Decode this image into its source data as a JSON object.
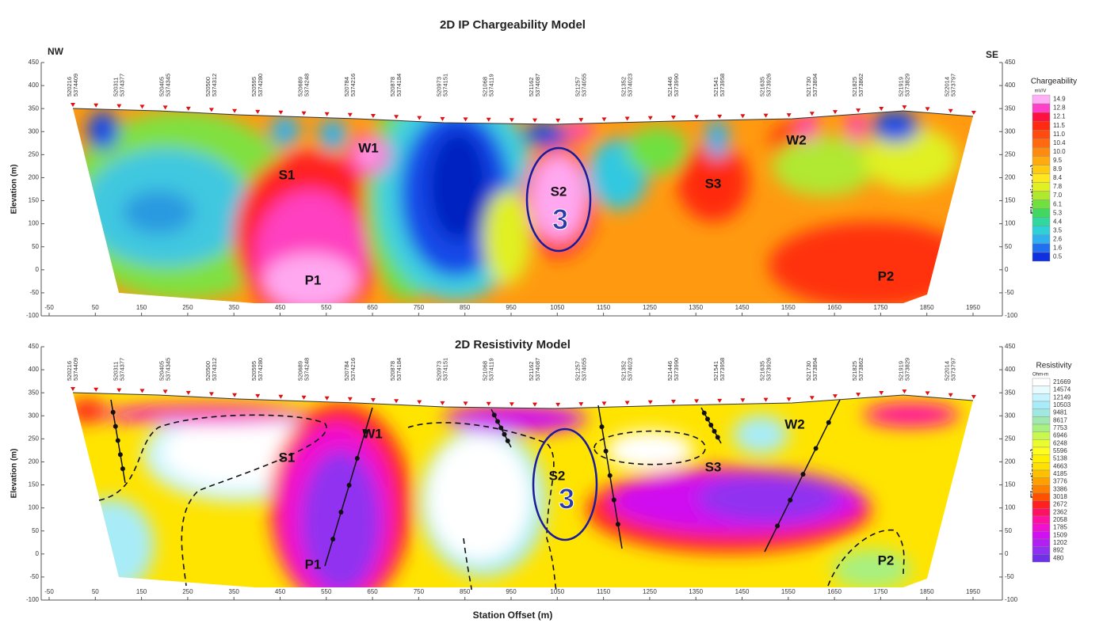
{
  "figure": {
    "x_label": "Station Offset (m)",
    "left_label": "NW",
    "right_label": "SE"
  },
  "chart_data": [
    {
      "type": "contour",
      "title": "2D IP Chargeability Model",
      "y_label": "Elevation (m)",
      "xlim": [
        -80,
        1990
      ],
      "ylim": [
        -100,
        450
      ],
      "xticks": [
        -50,
        50,
        150,
        250,
        350,
        450,
        550,
        650,
        750,
        850,
        950,
        1050,
        1150,
        1250,
        1350,
        1450,
        1550,
        1650,
        1750,
        1850,
        1950
      ],
      "yticks": [
        -100,
        -50,
        0,
        50,
        100,
        150,
        200,
        250,
        300,
        350,
        400,
        450
      ],
      "stations": [
        [
          "520216",
          "5374409"
        ],
        [
          "520311",
          "5374377"
        ],
        [
          "520405",
          "5374345"
        ],
        [
          "520500",
          "5374312"
        ],
        [
          "520595",
          "5374280"
        ],
        [
          "520689",
          "5374248"
        ],
        [
          "520784",
          "5374216"
        ],
        [
          "520878",
          "5374184"
        ],
        [
          "520973",
          "5374151"
        ],
        [
          "521068",
          "5374119"
        ],
        [
          "521162",
          "5374087"
        ],
        [
          "521257",
          "5374055"
        ],
        [
          "521352",
          "5374023"
        ],
        [
          "521446",
          "5373990"
        ],
        [
          "521541",
          "5373958"
        ],
        [
          "521635",
          "5373926"
        ],
        [
          "521730",
          "5373894"
        ],
        [
          "521825",
          "5373862"
        ],
        [
          "521919",
          "5373829"
        ],
        [
          "522014",
          "5373797"
        ]
      ],
      "annotations": [
        "S1",
        "W1",
        "S2",
        "3",
        "S3",
        "W2",
        "P1",
        "P2"
      ],
      "colorbar": {
        "title": "Chargeability",
        "unit": "mV/V",
        "levels": [
          14.9,
          12.8,
          12.1,
          11.5,
          11.0,
          10.4,
          10.0,
          9.5,
          8.9,
          8.4,
          7.8,
          7.0,
          6.1,
          5.3,
          4.4,
          3.5,
          2.6,
          1.6,
          0.5
        ],
        "level_labels": [
          "14.9",
          "12.8",
          "12.1",
          "11.5",
          "11.0",
          "10.4",
          "10.0",
          "9.5",
          "8.9",
          "8.4",
          "7.8",
          "7.0",
          "6.1",
          "5.3",
          "4.4",
          "3.5",
          "2.6",
          "1.6",
          "0.5"
        ],
        "colors": [
          "#ffb0f5",
          "#ff40c8",
          "#ff1040",
          "#ff2a10",
          "#ff4a10",
          "#ff6a10",
          "#ff8a10",
          "#ffaa10",
          "#ffca10",
          "#ffe820",
          "#e0f020",
          "#b0e830",
          "#70e040",
          "#40d860",
          "#30d8a0",
          "#30d0d8",
          "#30b0f0",
          "#2070f0",
          "#1030e0"
        ]
      }
    },
    {
      "type": "contour",
      "title": "2D Resistivity Model",
      "y_label": "Elevation (m)",
      "xlim": [
        -80,
        1990
      ],
      "ylim": [
        -100,
        450
      ],
      "xticks": [
        -50,
        50,
        150,
        250,
        350,
        450,
        550,
        650,
        750,
        850,
        950,
        1050,
        1150,
        1250,
        1350,
        1450,
        1550,
        1650,
        1750,
        1850,
        1950
      ],
      "yticks": [
        -100,
        -50,
        0,
        50,
        100,
        150,
        200,
        250,
        300,
        350,
        400,
        450
      ],
      "stations": [
        [
          "520216",
          "5374409"
        ],
        [
          "520311",
          "5374377"
        ],
        [
          "520405",
          "5374345"
        ],
        [
          "520500",
          "5374312"
        ],
        [
          "520595",
          "5374280"
        ],
        [
          "520689",
          "5374248"
        ],
        [
          "520784",
          "5374216"
        ],
        [
          "520878",
          "5374184"
        ],
        [
          "520973",
          "5374151"
        ],
        [
          "521068",
          "5374119"
        ],
        [
          "521162",
          "5374087"
        ],
        [
          "521257",
          "5374055"
        ],
        [
          "521352",
          "5374023"
        ],
        [
          "521446",
          "5373990"
        ],
        [
          "521541",
          "5373958"
        ],
        [
          "521635",
          "5373926"
        ],
        [
          "521730",
          "5373894"
        ],
        [
          "521825",
          "5373862"
        ],
        [
          "521919",
          "5373829"
        ],
        [
          "522014",
          "5373797"
        ]
      ],
      "annotations": [
        "S1",
        "W1",
        "S2",
        "3",
        "S3",
        "W2",
        "P1",
        "P2"
      ],
      "colorbar": {
        "title": "Resistivity",
        "unit": "Ohm-m",
        "levels": [
          21669,
          14574,
          12149,
          10503,
          9481,
          8617,
          7753,
          6946,
          6248,
          5596,
          5138,
          4663,
          4185,
          3776,
          3386,
          3018,
          2672,
          2362,
          2058,
          1785,
          1509,
          1202,
          892,
          480
        ],
        "colors": [
          "#ffffff",
          "#e8fcff",
          "#c8f4ff",
          "#a8ecf8",
          "#a0e8e0",
          "#a0e8b0",
          "#a8f080",
          "#c8f850",
          "#e8fc30",
          "#fffc20",
          "#fff000",
          "#ffe000",
          "#ffc000",
          "#ffa000",
          "#ff8000",
          "#ff5000",
          "#ff2020",
          "#ff1060",
          "#ff10a0",
          "#f010d0",
          "#d010f0",
          "#b020f0",
          "#9030f0",
          "#7030e8"
        ]
      }
    }
  ]
}
